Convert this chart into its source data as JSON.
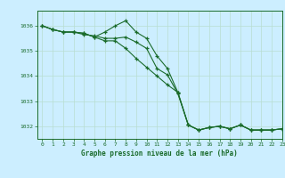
{
  "title": "Graphe pression niveau de la mer (hPa)",
  "background_color": "#cceeff",
  "plot_bg_color": "#cceeff",
  "grid_color": "#b8ddd0",
  "line_color": "#1a6b2a",
  "xlim": [
    -0.5,
    23
  ],
  "ylim": [
    1031.5,
    1036.6
  ],
  "yticks": [
    1032,
    1033,
    1034,
    1035,
    1036
  ],
  "xticks": [
    0,
    1,
    2,
    3,
    4,
    5,
    6,
    7,
    8,
    9,
    10,
    11,
    12,
    13,
    14,
    15,
    16,
    17,
    18,
    19,
    20,
    21,
    22,
    23
  ],
  "series1": [
    1036.0,
    1035.85,
    1035.75,
    1035.75,
    1035.65,
    1035.6,
    1035.5,
    1035.5,
    1035.55,
    1035.35,
    1035.1,
    1034.3,
    1034.05,
    1033.3,
    1032.05,
    1031.85,
    1031.95,
    1032.0,
    1031.9,
    1032.05,
    1031.85,
    1031.85,
    1031.85,
    1031.9
  ],
  "series2": [
    1036.0,
    1035.85,
    1035.75,
    1035.75,
    1035.7,
    1035.55,
    1035.75,
    1036.0,
    1036.2,
    1035.75,
    1035.5,
    1034.8,
    1034.3,
    1033.35,
    1032.05,
    1031.85,
    1031.95,
    1032.0,
    1031.9,
    1032.05,
    1031.85,
    1031.85,
    1031.85,
    1031.9
  ],
  "series3": [
    1036.0,
    1035.85,
    1035.75,
    1035.75,
    1035.7,
    1035.55,
    1035.4,
    1035.4,
    1035.1,
    1034.7,
    1034.35,
    1034.0,
    1033.65,
    1033.35,
    1032.05,
    1031.85,
    1031.95,
    1032.0,
    1031.9,
    1032.05,
    1031.85,
    1031.85,
    1031.85,
    1031.9
  ]
}
